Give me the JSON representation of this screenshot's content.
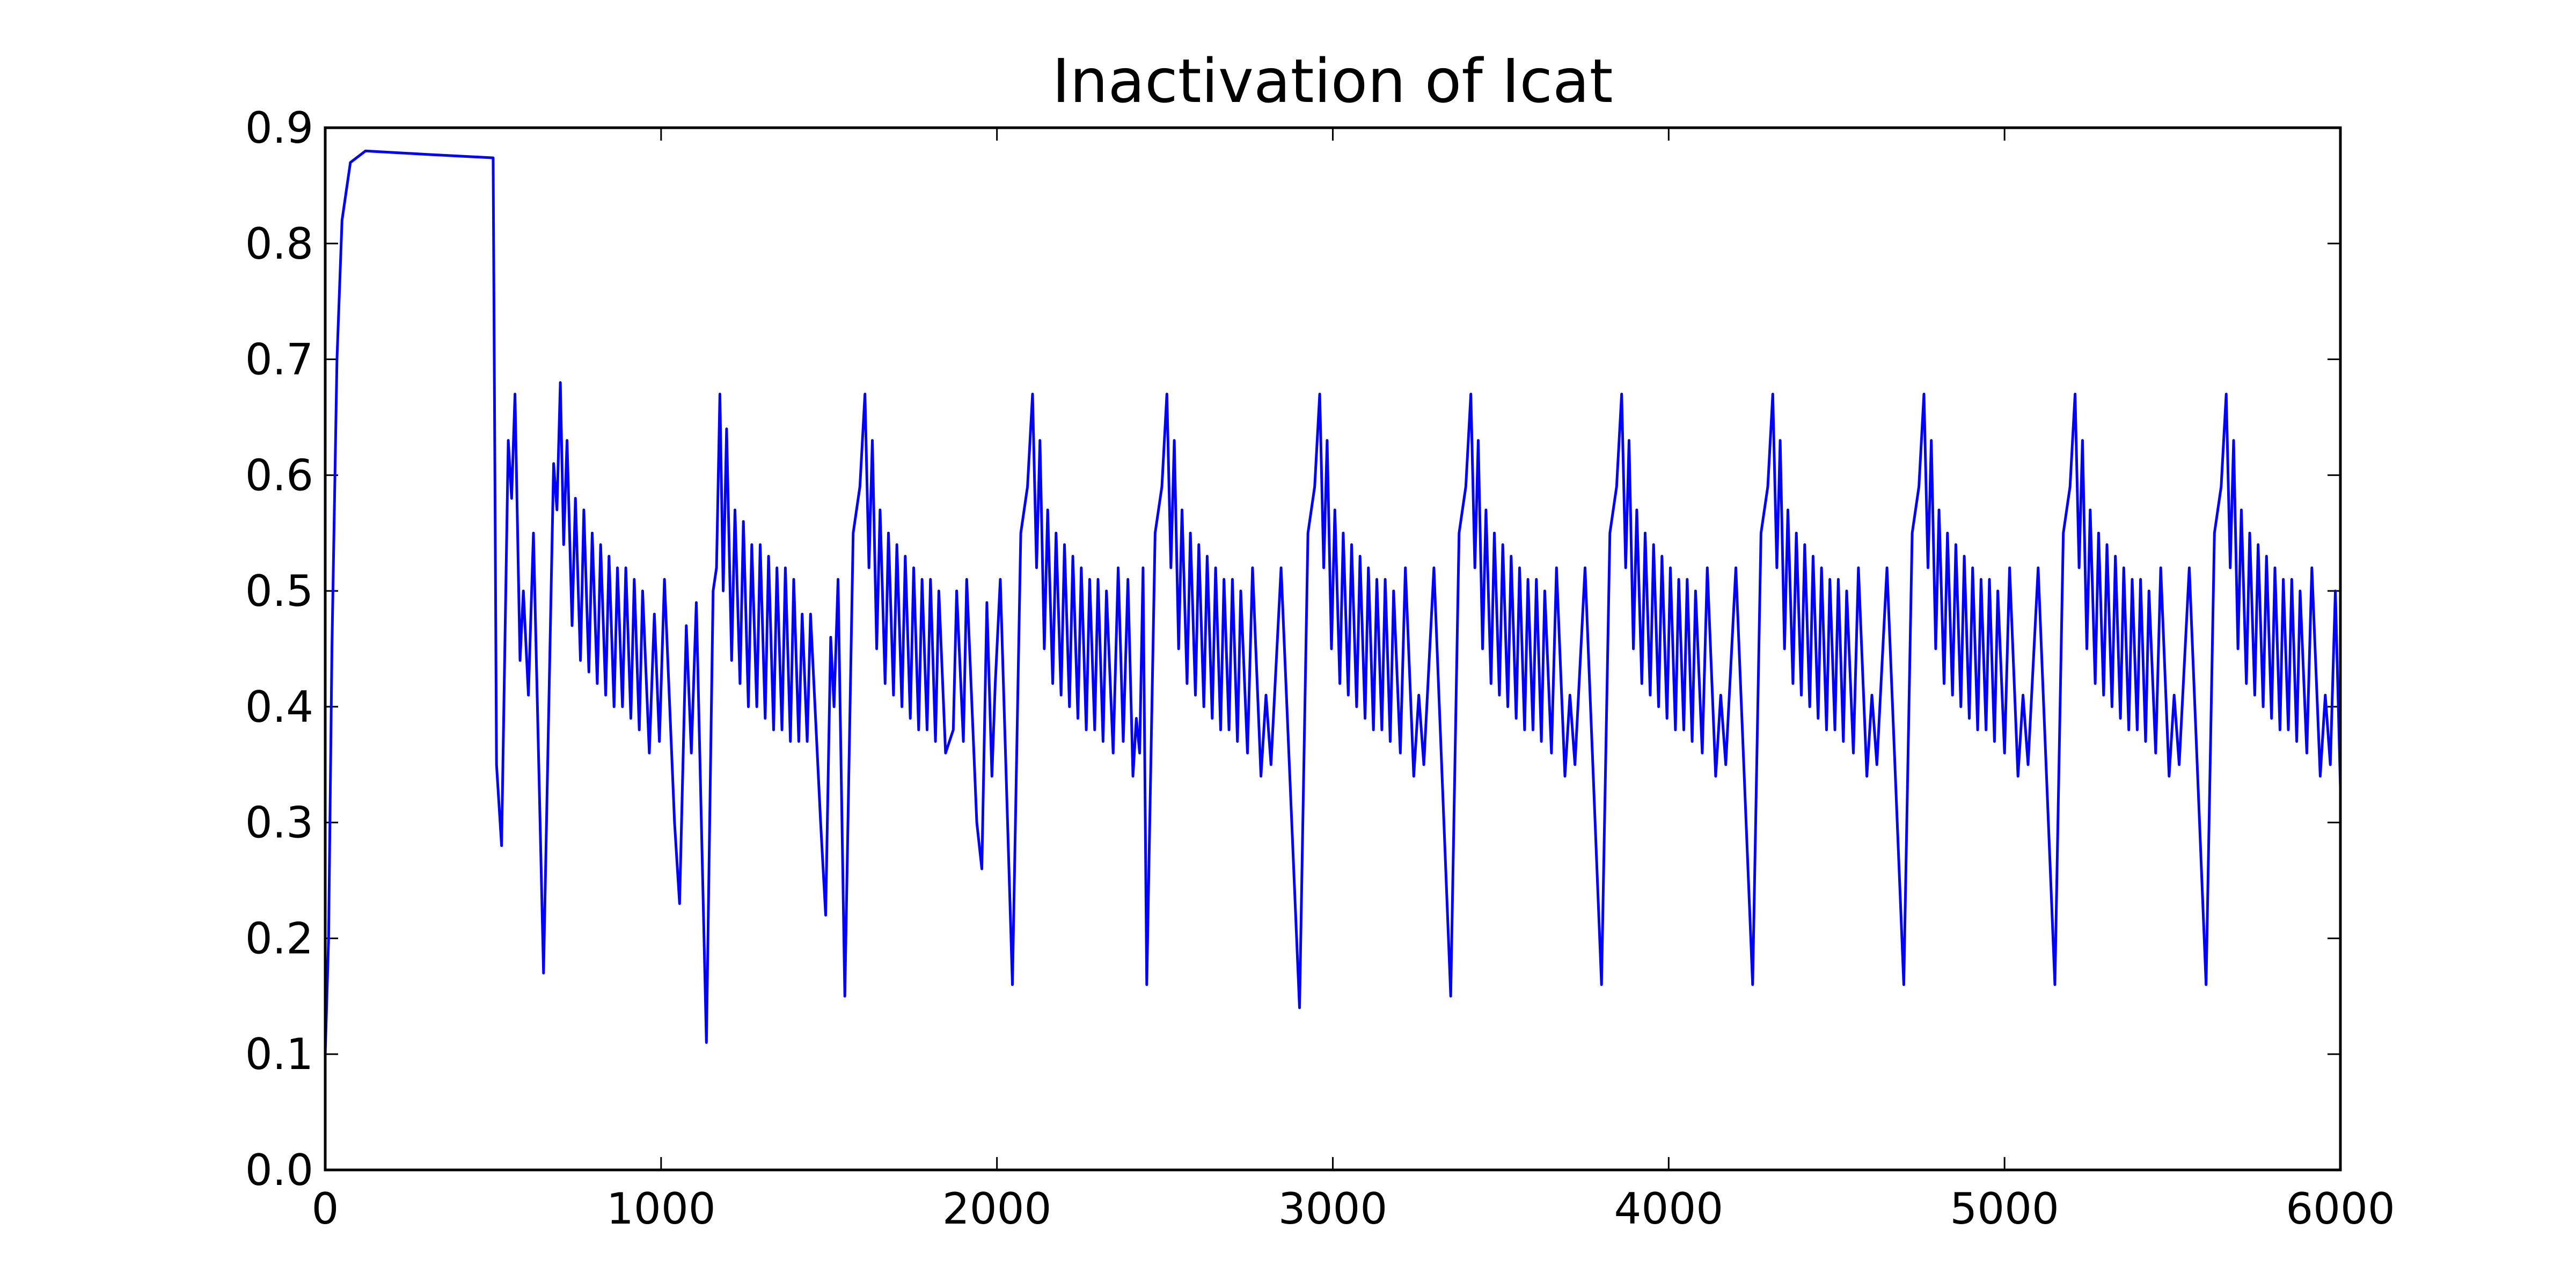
{
  "chart_data": {
    "type": "line",
    "title": "Inactivation of Icat",
    "x": [
      0,
      10,
      20,
      35,
      50,
      75,
      120,
      300,
      500,
      510,
      525,
      545,
      555,
      565,
      580,
      590,
      605,
      620,
      650,
      680,
      690,
      700,
      710,
      720,
      735,
      745,
      760,
      770,
      785,
      795,
      810,
      820,
      835,
      845,
      860,
      870,
      885,
      895,
      910,
      920,
      935,
      945,
      965,
      980,
      995,
      1010,
      1040,
      1055,
      1075,
      1090,
      1105,
      1135,
      1155,
      1165,
      1175,
      1185,
      1195,
      1210,
      1220,
      1235,
      1245,
      1260,
      1270,
      1285,
      1295,
      1310,
      1320,
      1335,
      1345,
      1360,
      1370,
      1385,
      1395,
      1410,
      1420,
      1435,
      1445,
      1475,
      1490,
      1505,
      1515,
      1527,
      1547,
      1572,
      1592,
      1607,
      1619,
      1629,
      1642,
      1652,
      1667,
      1677,
      1692,
      1702,
      1717,
      1727,
      1742,
      1752,
      1767,
      1777,
      1792,
      1802,
      1817,
      1827,
      1847,
      1870,
      1880,
      1900,
      1910,
      1940,
      1955,
      1970,
      1985,
      1995,
      2010,
      2046,
      2071,
      2091,
      2106,
      2118,
      2128,
      2141,
      2151,
      2166,
      2176,
      2191,
      2201,
      2216,
      2226,
      2241,
      2251,
      2266,
      2276,
      2291,
      2301,
      2316,
      2326,
      2346,
      2361,
      2376,
      2390,
      2405,
      2415,
      2425,
      2435,
      2446,
      2471,
      2491,
      2506,
      2518,
      2528,
      2541,
      2551,
      2566,
      2576,
      2591,
      2601,
      2616,
      2626,
      2641,
      2651,
      2666,
      2676,
      2691,
      2701,
      2716,
      2726,
      2746,
      2761,
      2786,
      2801,
      2816,
      2846,
      2901,
      2926,
      2946,
      2961,
      2973,
      2983,
      2996,
      3006,
      3021,
      3031,
      3046,
      3056,
      3071,
      3081,
      3096,
      3106,
      3121,
      3131,
      3146,
      3156,
      3171,
      3181,
      3201,
      3216,
      3241,
      3256,
      3271,
      3301,
      3351,
      3376,
      3396,
      3411,
      3423,
      3433,
      3446,
      3456,
      3471,
      3481,
      3496,
      3506,
      3521,
      3531,
      3546,
      3556,
      3571,
      3581,
      3596,
      3606,
      3621,
      3631,
      3651,
      3666,
      3691,
      3706,
      3721,
      3751,
      3800,
      3825,
      3845,
      3860,
      3872,
      3882,
      3895,
      3905,
      3920,
      3930,
      3945,
      3955,
      3970,
      3980,
      3995,
      4005,
      4020,
      4030,
      4045,
      4055,
      4070,
      4080,
      4100,
      4115,
      4140,
      4155,
      4170,
      4200,
      4250,
      4275,
      4295,
      4310,
      4322,
      4332,
      4345,
      4355,
      4370,
      4380,
      4395,
      4405,
      4420,
      4430,
      4445,
      4455,
      4470,
      4480,
      4495,
      4505,
      4520,
      4530,
      4550,
      4565,
      4590,
      4605,
      4620,
      4650,
      4700,
      4725,
      4745,
      4760,
      4772,
      4782,
      4795,
      4805,
      4820,
      4830,
      4845,
      4855,
      4870,
      4880,
      4895,
      4905,
      4920,
      4930,
      4945,
      4955,
      4970,
      4980,
      5000,
      5015,
      5040,
      5055,
      5070,
      5100,
      5150,
      5175,
      5195,
      5210,
      5222,
      5232,
      5245,
      5255,
      5270,
      5280,
      5295,
      5305,
      5320,
      5330,
      5345,
      5355,
      5370,
      5380,
      5395,
      5405,
      5420,
      5430,
      5450,
      5465,
      5490,
      5505,
      5520,
      5550,
      5600,
      5625,
      5645,
      5660,
      5672,
      5682,
      5695,
      5705,
      5720,
      5730,
      5745,
      5755,
      5770,
      5780,
      5795,
      5805,
      5820,
      5830,
      5845,
      5855,
      5870,
      5880,
      5900,
      5915,
      5940,
      5955,
      5970,
      5985,
      6000
    ],
    "series": [
      {
        "color": "#0000ff",
        "values": [
          0.1,
          0.2,
          0.45,
          0.7,
          0.82,
          0.87,
          0.88,
          0.877,
          0.874,
          0.35,
          0.28,
          0.63,
          0.58,
          0.67,
          0.44,
          0.5,
          0.41,
          0.55,
          0.17,
          0.61,
          0.57,
          0.68,
          0.54,
          0.63,
          0.47,
          0.58,
          0.44,
          0.57,
          0.43,
          0.55,
          0.42,
          0.54,
          0.41,
          0.53,
          0.4,
          0.52,
          0.4,
          0.52,
          0.39,
          0.51,
          0.38,
          0.5,
          0.36,
          0.48,
          0.37,
          0.51,
          0.3,
          0.23,
          0.47,
          0.36,
          0.49,
          0.11,
          0.5,
          0.52,
          0.67,
          0.5,
          0.64,
          0.44,
          0.57,
          0.42,
          0.56,
          0.4,
          0.54,
          0.4,
          0.54,
          0.39,
          0.53,
          0.38,
          0.52,
          0.38,
          0.52,
          0.37,
          0.51,
          0.37,
          0.48,
          0.37,
          0.48,
          0.3,
          0.22,
          0.46,
          0.4,
          0.51,
          0.15,
          0.55,
          0.59,
          0.67,
          0.52,
          0.63,
          0.45,
          0.57,
          0.42,
          0.55,
          0.41,
          0.54,
          0.4,
          0.53,
          0.39,
          0.52,
          0.38,
          0.51,
          0.38,
          0.51,
          0.37,
          0.5,
          0.36,
          0.38,
          0.5,
          0.37,
          0.51,
          0.3,
          0.26,
          0.49,
          0.34,
          0.42,
          0.51,
          0.16,
          0.55,
          0.59,
          0.67,
          0.52,
          0.63,
          0.45,
          0.57,
          0.42,
          0.55,
          0.41,
          0.54,
          0.4,
          0.53,
          0.39,
          0.52,
          0.38,
          0.51,
          0.38,
          0.51,
          0.37,
          0.5,
          0.36,
          0.52,
          0.37,
          0.51,
          0.34,
          0.39,
          0.36,
          0.52,
          0.16,
          0.55,
          0.59,
          0.67,
          0.52,
          0.63,
          0.45,
          0.57,
          0.42,
          0.55,
          0.41,
          0.54,
          0.4,
          0.53,
          0.39,
          0.52,
          0.38,
          0.51,
          0.38,
          0.51,
          0.37,
          0.5,
          0.36,
          0.52,
          0.34,
          0.41,
          0.35,
          0.52,
          0.14,
          0.55,
          0.59,
          0.67,
          0.52,
          0.63,
          0.45,
          0.57,
          0.42,
          0.55,
          0.41,
          0.54,
          0.4,
          0.53,
          0.39,
          0.52,
          0.38,
          0.51,
          0.38,
          0.51,
          0.37,
          0.5,
          0.36,
          0.52,
          0.34,
          0.41,
          0.35,
          0.52,
          0.15,
          0.55,
          0.59,
          0.67,
          0.52,
          0.63,
          0.45,
          0.57,
          0.42,
          0.55,
          0.41,
          0.54,
          0.4,
          0.53,
          0.39,
          0.52,
          0.38,
          0.51,
          0.38,
          0.51,
          0.37,
          0.5,
          0.36,
          0.52,
          0.34,
          0.41,
          0.35,
          0.52,
          0.16,
          0.55,
          0.59,
          0.67,
          0.52,
          0.63,
          0.45,
          0.57,
          0.42,
          0.55,
          0.41,
          0.54,
          0.4,
          0.53,
          0.39,
          0.52,
          0.38,
          0.51,
          0.38,
          0.51,
          0.37,
          0.5,
          0.36,
          0.52,
          0.34,
          0.41,
          0.35,
          0.52,
          0.16,
          0.55,
          0.59,
          0.67,
          0.52,
          0.63,
          0.45,
          0.57,
          0.42,
          0.55,
          0.41,
          0.54,
          0.4,
          0.53,
          0.39,
          0.52,
          0.38,
          0.51,
          0.38,
          0.51,
          0.37,
          0.5,
          0.36,
          0.52,
          0.34,
          0.41,
          0.35,
          0.52,
          0.16,
          0.55,
          0.59,
          0.67,
          0.52,
          0.63,
          0.45,
          0.57,
          0.42,
          0.55,
          0.41,
          0.54,
          0.4,
          0.53,
          0.39,
          0.52,
          0.38,
          0.51,
          0.38,
          0.51,
          0.37,
          0.5,
          0.36,
          0.52,
          0.34,
          0.41,
          0.35,
          0.52,
          0.16,
          0.55,
          0.59,
          0.67,
          0.52,
          0.63,
          0.45,
          0.57,
          0.42,
          0.55,
          0.41,
          0.54,
          0.4,
          0.53,
          0.39,
          0.52,
          0.38,
          0.51,
          0.38,
          0.51,
          0.37,
          0.5,
          0.36,
          0.52,
          0.34,
          0.41,
          0.35,
          0.52,
          0.16,
          0.55,
          0.59,
          0.67,
          0.52,
          0.63,
          0.45,
          0.57,
          0.42,
          0.55,
          0.41,
          0.54,
          0.4,
          0.53,
          0.39,
          0.52,
          0.38,
          0.51,
          0.38,
          0.51,
          0.37,
          0.5,
          0.36,
          0.52,
          0.34,
          0.41,
          0.35,
          0.5,
          0.33
        ]
      }
    ],
    "xlim": [
      0,
      6000
    ],
    "xticks": [
      0,
      1000,
      2000,
      3000,
      4000,
      5000,
      6000
    ],
    "ylim": [
      0,
      0.9
    ],
    "yticks": [
      {
        "value": 0,
        "label": "0.0"
      },
      0.1,
      0.2,
      0.3,
      0.4,
      0.5,
      0.6,
      0.7,
      0.8,
      0.9
    ],
    "grid": false
  }
}
